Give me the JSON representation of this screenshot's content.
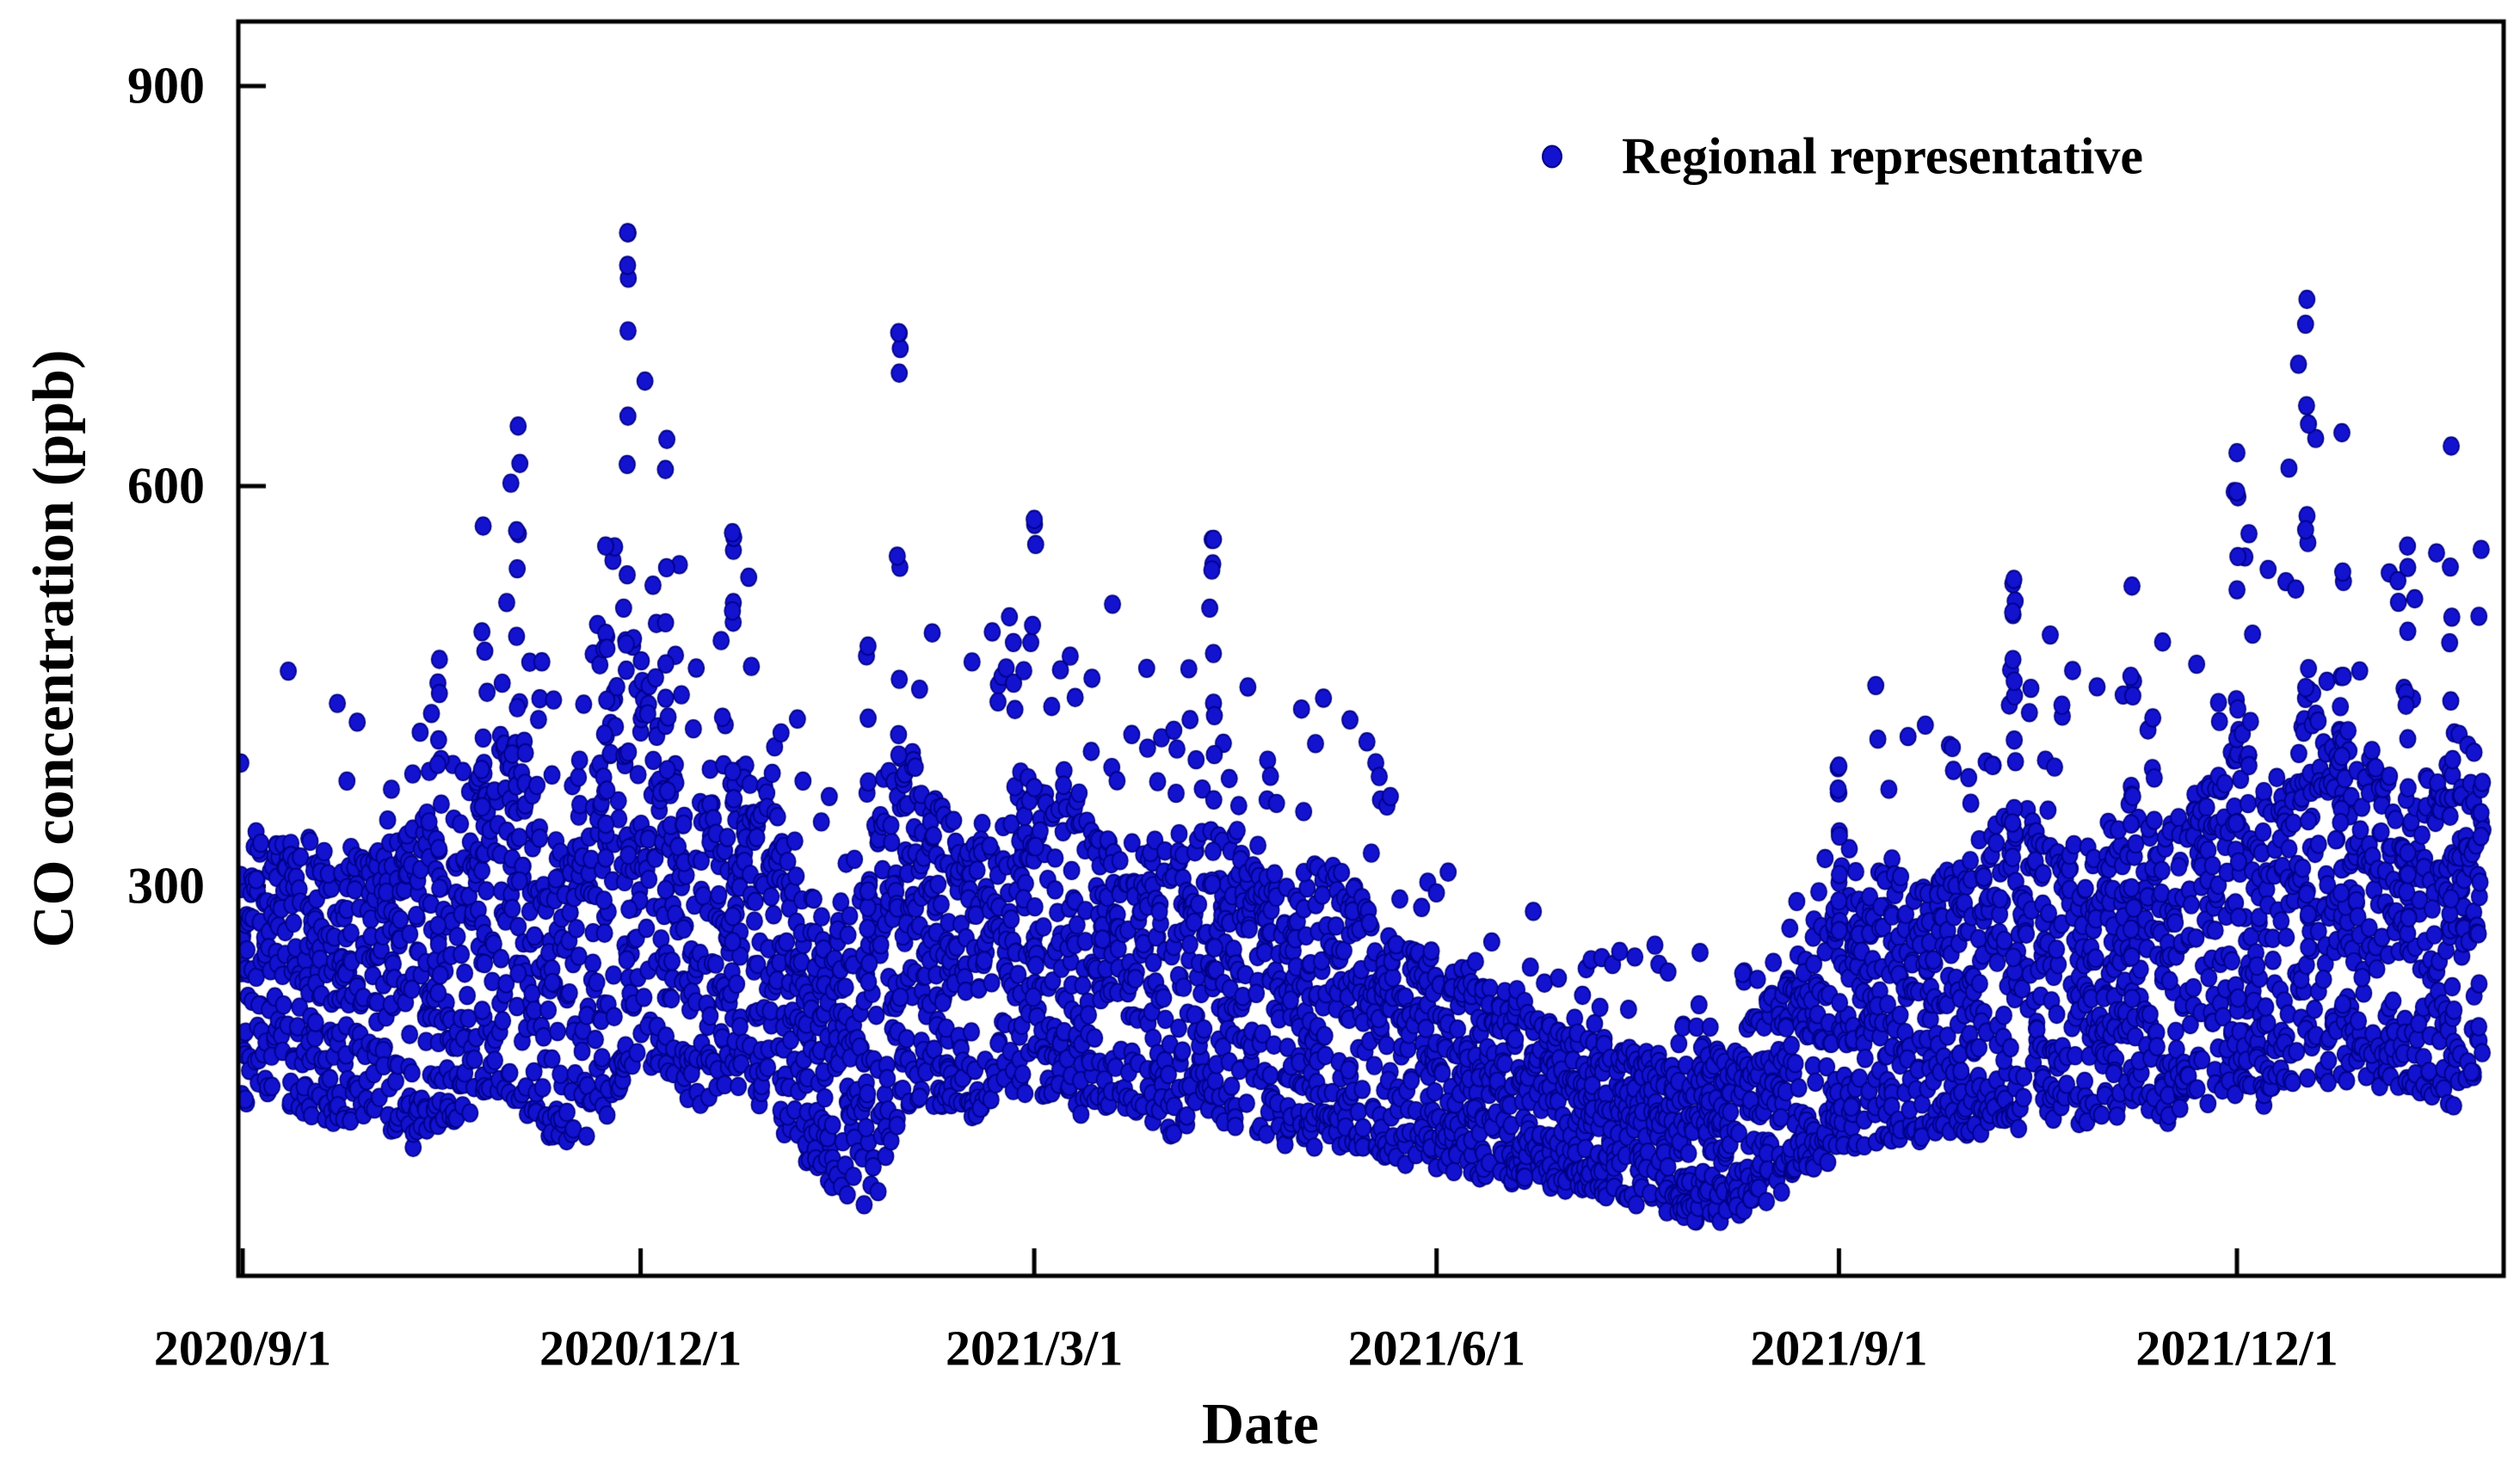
{
  "figure": {
    "background_color": "#ffffff",
    "frame_color": "#000000"
  },
  "chart_data": {
    "type": "scatter",
    "title": "",
    "series": [
      {
        "name": "Regional representative",
        "color": "#1212cf",
        "edge_color": "#000082",
        "marker": "dot",
        "marker_radius_px": 9.6
      }
    ],
    "x_axis": {
      "label": "Date",
      "tick_labels": [
        "2020/9/1",
        "2020/12/1",
        "2021/3/1",
        "2021/6/1",
        "2021/9/1",
        "2021/12/1"
      ],
      "tick_days": [
        0,
        91,
        181,
        273,
        365,
        456
      ],
      "start_date": "2020/9/1",
      "domain_days": [
        0,
        517
      ],
      "grid": false
    },
    "y_axis": {
      "label": "CO concentration (ppb)",
      "ticks": [
        300,
        600,
        900
      ],
      "range": [
        10,
        948
      ],
      "grid": false
    },
    "legend": {
      "position": "top-right",
      "entries": [
        "Regional representative"
      ]
    },
    "observed_extremes": {
      "max_ppb": 790,
      "max_date": "2020/11/28",
      "min_ppb": 47,
      "min_date": "2021/1/19"
    },
    "envelope_points": [
      [
        0,
        140,
        330,
        430
      ],
      [
        8,
        150,
        355,
        480
      ],
      [
        16,
        130,
        330,
        440
      ],
      [
        24,
        120,
        335,
        440
      ],
      [
        32,
        115,
        340,
        450
      ],
      [
        40,
        110,
        345,
        470
      ],
      [
        48,
        125,
        380,
        520
      ],
      [
        55,
        135,
        400,
        570
      ],
      [
        63,
        140,
        430,
        645
      ],
      [
        70,
        115,
        340,
        460
      ],
      [
        77,
        110,
        330,
        450
      ],
      [
        83,
        130,
        420,
        560
      ],
      [
        88,
        160,
        500,
        790
      ],
      [
        91,
        170,
        480,
        700
      ],
      [
        97,
        150,
        430,
        635
      ],
      [
        104,
        140,
        350,
        480
      ],
      [
        112,
        150,
        400,
        565
      ],
      [
        120,
        140,
        380,
        540
      ],
      [
        128,
        100,
        300,
        420
      ],
      [
        136,
        70,
        280,
        385
      ],
      [
        143,
        62,
        330,
        480
      ],
      [
        150,
        120,
        430,
        715
      ],
      [
        158,
        140,
        380,
        600
      ],
      [
        165,
        130,
        330,
        465
      ],
      [
        172,
        140,
        350,
        500
      ],
      [
        181,
        150,
        380,
        575
      ],
      [
        189,
        140,
        390,
        580
      ],
      [
        197,
        130,
        350,
        520
      ],
      [
        205,
        130,
        330,
        470
      ],
      [
        213,
        120,
        330,
        460
      ],
      [
        222,
        130,
        350,
        560
      ],
      [
        230,
        120,
        330,
        480
      ],
      [
        240,
        110,
        300,
        430
      ],
      [
        250,
        110,
        320,
        490
      ],
      [
        260,
        100,
        280,
        400
      ],
      [
        270,
        100,
        250,
        340
      ],
      [
        280,
        90,
        230,
        305
      ],
      [
        290,
        85,
        220,
        290
      ],
      [
        300,
        80,
        200,
        280
      ],
      [
        310,
        70,
        190,
        265
      ],
      [
        320,
        65,
        180,
        250
      ],
      [
        330,
        55,
        170,
        240
      ],
      [
        340,
        55,
        180,
        260
      ],
      [
        350,
        70,
        220,
        300
      ],
      [
        358,
        90,
        260,
        355
      ],
      [
        365,
        100,
        280,
        390
      ],
      [
        375,
        110,
        320,
        480
      ],
      [
        385,
        110,
        300,
        420
      ],
      [
        395,
        120,
        330,
        470
      ],
      [
        405,
        120,
        360,
        530
      ],
      [
        415,
        130,
        340,
        490
      ],
      [
        425,
        130,
        330,
        455
      ],
      [
        432,
        140,
        380,
        530
      ],
      [
        440,
        130,
        350,
        490
      ],
      [
        448,
        140,
        380,
        520
      ],
      [
        456,
        150,
        420,
        625
      ],
      [
        464,
        140,
        380,
        540
      ],
      [
        472,
        160,
        450,
        740
      ],
      [
        480,
        150,
        420,
        640
      ],
      [
        487,
        160,
        400,
        560
      ],
      [
        495,
        150,
        380,
        540
      ],
      [
        503,
        140,
        400,
        630
      ],
      [
        512,
        150,
        420,
        560
      ]
    ],
    "spike_days": [
      [
        88,
        790
      ],
      [
        150,
        715
      ],
      [
        63,
        645
      ],
      [
        97,
        635
      ],
      [
        472,
        740
      ],
      [
        480,
        640
      ],
      [
        456,
        625
      ],
      [
        505,
        630
      ],
      [
        55,
        570
      ],
      [
        112,
        565
      ],
      [
        181,
        575
      ],
      [
        222,
        560
      ],
      [
        405,
        530
      ],
      [
        495,
        555
      ],
      [
        143,
        480
      ],
      [
        83,
        555
      ],
      [
        432,
        525
      ],
      [
        365,
        390
      ],
      [
        45,
        470
      ]
    ],
    "points_per_day_min": 8,
    "points_per_day_max": 12,
    "last_data_day": 512,
    "seed": 20200901
  }
}
